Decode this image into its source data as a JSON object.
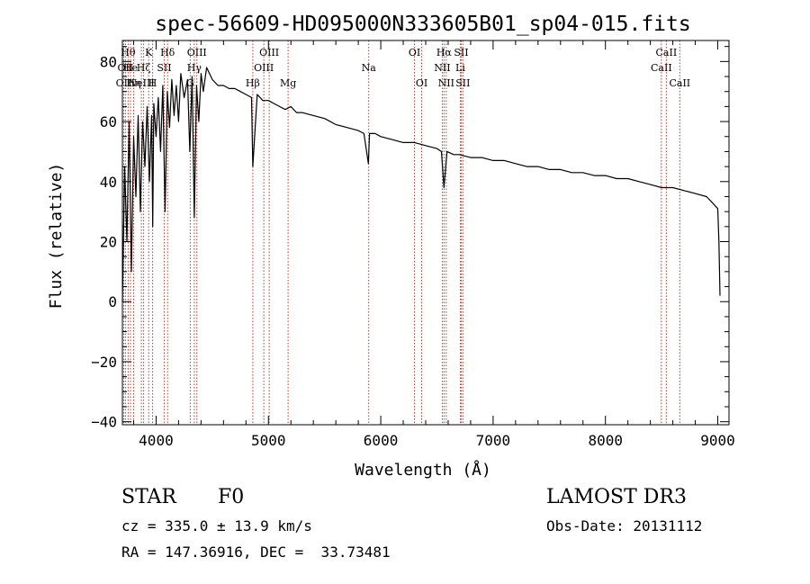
{
  "chart_data": {
    "type": "line",
    "title": "spec-56609-HD095000N333605B01_sp04-015.fits",
    "xlabel": "Wavelength (Å)",
    "ylabel": "Flux (relative)",
    "xlim": [
      3700,
      9100
    ],
    "ylim": [
      -41,
      87
    ],
    "xticks": [
      4000,
      5000,
      6000,
      7000,
      8000,
      9000
    ],
    "yticks": [
      -40,
      -20,
      0,
      20,
      40,
      60,
      80
    ],
    "series": [
      {
        "name": "flux",
        "x": [
          3700,
          3720,
          3740,
          3760,
          3780,
          3800,
          3820,
          3840,
          3860,
          3880,
          3900,
          3920,
          3940,
          3960,
          3970,
          3980,
          4000,
          4020,
          4040,
          4060,
          4080,
          4100,
          4120,
          4140,
          4160,
          4180,
          4200,
          4220,
          4250,
          4280,
          4300,
          4320,
          4340,
          4360,
          4380,
          4400,
          4420,
          4450,
          4500,
          4550,
          4600,
          4650,
          4700,
          4750,
          4800,
          4850,
          4861,
          4900,
          4950,
          5000,
          5050,
          5100,
          5150,
          5200,
          5250,
          5300,
          5400,
          5500,
          5600,
          5700,
          5800,
          5850,
          5890,
          5900,
          5950,
          6000,
          6100,
          6200,
          6300,
          6400,
          6500,
          6540,
          6563,
          6590,
          6650,
          6700,
          6800,
          6900,
          7000,
          7100,
          7200,
          7300,
          7400,
          7500,
          7600,
          7700,
          7800,
          7900,
          8000,
          8100,
          8200,
          8300,
          8400,
          8500,
          8600,
          8700,
          8800,
          8900,
          8950,
          9000,
          9010,
          9020
        ],
        "y": [
          0,
          45,
          20,
          60,
          10,
          55,
          35,
          62,
          30,
          60,
          45,
          65,
          40,
          62,
          25,
          66,
          55,
          68,
          50,
          72,
          30,
          70,
          58,
          74,
          62,
          72,
          60,
          76,
          68,
          74,
          50,
          75,
          28,
          72,
          60,
          76,
          70,
          78,
          74,
          72,
          72,
          71,
          71,
          70,
          69,
          68,
          45,
          69,
          67,
          67,
          66,
          65,
          64,
          65,
          63,
          63,
          62,
          61,
          59,
          58,
          57,
          56,
          46,
          56,
          56,
          55,
          54,
          53,
          53,
          52,
          51,
          50,
          38,
          50,
          49,
          49,
          48,
          48,
          47,
          47,
          46,
          45,
          45,
          44,
          44,
          43,
          43,
          42,
          42,
          41,
          41,
          40,
          39,
          38,
          38,
          37,
          36,
          35,
          33,
          31,
          20,
          2
        ]
      }
    ],
    "lines": [
      {
        "x": 3712,
        "label": "OII",
        "row": 3
      },
      {
        "x": 3727,
        "label": "OII",
        "row": 2
      },
      {
        "x": 3751,
        "label": "Hθ",
        "row": 1
      },
      {
        "x": 3772,
        "label": "He",
        "row": 2
      },
      {
        "x": 3800,
        "label": "Hη",
        "row": 3
      },
      {
        "x": 3869,
        "label": "NeIII",
        "row": 3
      },
      {
        "x": 3889,
        "label": "Hζ",
        "row": 2
      },
      {
        "x": 3934,
        "label": "K",
        "row": 1
      },
      {
        "x": 3969,
        "label": "H",
        "row": 3
      },
      {
        "x": 4072,
        "label": "SII",
        "row": 2
      },
      {
        "x": 4102,
        "label": "Hδ",
        "row": 1
      },
      {
        "x": 4304,
        "label": "G",
        "row": 3
      },
      {
        "x": 4340,
        "label": "Hγ",
        "row": 2
      },
      {
        "x": 4363,
        "label": "OIII",
        "row": 1
      },
      {
        "x": 4861,
        "label": "Hβ",
        "row": 3
      },
      {
        "x": 4959,
        "label": "OIII",
        "row": 2
      },
      {
        "x": 5007,
        "label": "OIII",
        "row": 1
      },
      {
        "x": 5175,
        "label": "Mg",
        "row": 3
      },
      {
        "x": 5893,
        "label": "Na",
        "row": 2
      },
      {
        "x": 6300,
        "label": "OI",
        "row": 1
      },
      {
        "x": 6364,
        "label": "OI",
        "row": 3
      },
      {
        "x": 6548,
        "label": "NII",
        "row": 2
      },
      {
        "x": 6563,
        "label": "Hα",
        "row": 1
      },
      {
        "x": 6583,
        "label": "NII",
        "row": 3
      },
      {
        "x": 6708,
        "label": "Li",
        "row": 2
      },
      {
        "x": 6716,
        "label": "SII",
        "row": 1
      },
      {
        "x": 6731,
        "label": "SII",
        "row": 3
      },
      {
        "x": 8498,
        "label": "CaII",
        "row": 2
      },
      {
        "x": 8542,
        "label": "CaII",
        "row": 1
      },
      {
        "x": 8662,
        "label": "CaII",
        "row": 3
      }
    ]
  },
  "info": {
    "class_label": "STAR",
    "subclass": "F0",
    "survey": "LAMOST DR3",
    "cz": "cz = 335.0 ± 13.9 km/s",
    "obs_date": "Obs-Date: 20131112",
    "coords": "RA = 147.36916, DEC =  33.73481"
  }
}
